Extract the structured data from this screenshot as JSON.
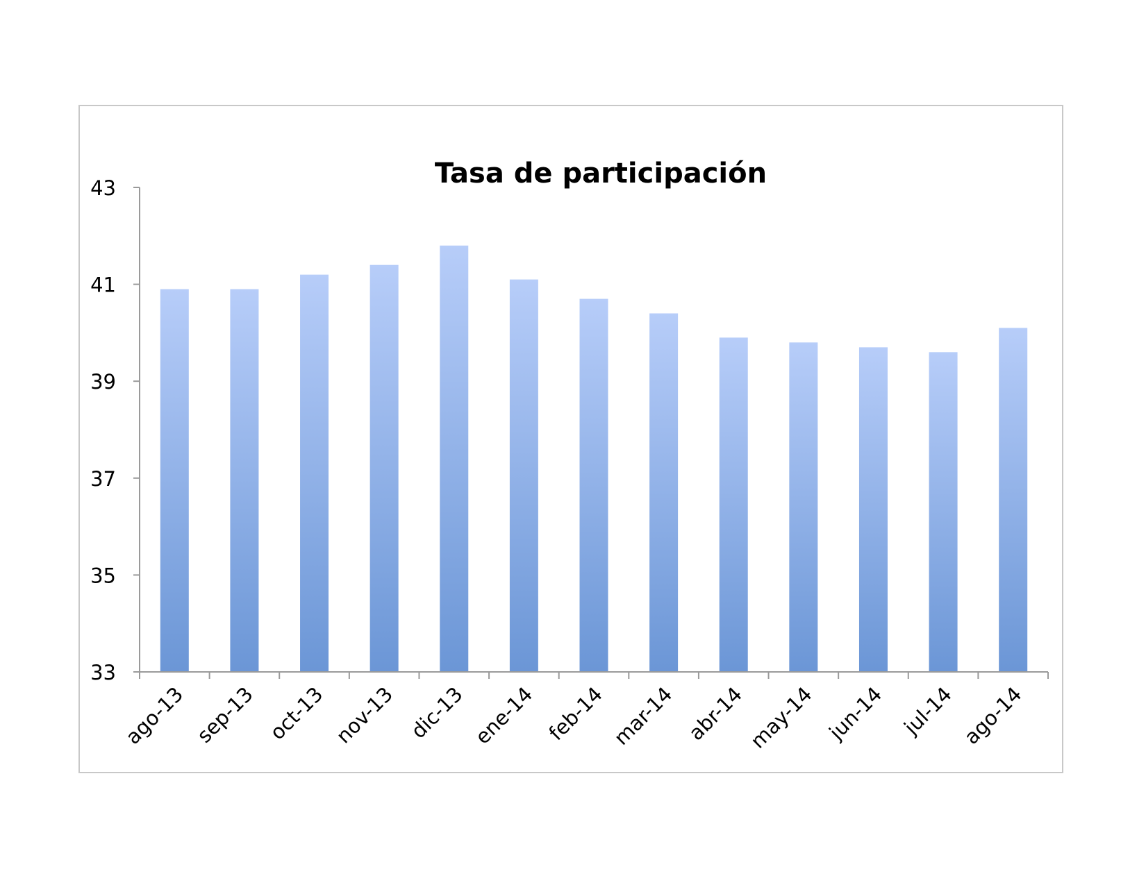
{
  "chart_data": {
    "type": "bar",
    "title": "Tasa de participación",
    "xlabel": "",
    "ylabel": "",
    "categories": [
      "ago-13",
      "sep-13",
      "oct-13",
      "nov-13",
      "dic-13",
      "ene-14",
      "feb-14",
      "mar-14",
      "abr-14",
      "may-14",
      "jun-14",
      "jul-14",
      "ago-14"
    ],
    "values": [
      40.9,
      40.9,
      41.2,
      41.4,
      41.8,
      41.1,
      40.7,
      40.4,
      39.9,
      39.8,
      39.7,
      39.6,
      40.1
    ],
    "ylim": [
      33,
      43
    ],
    "yticks": [
      "33",
      "35",
      "37",
      "39",
      "41",
      "43"
    ],
    "grid": false,
    "legend": "none",
    "colors": {
      "bar_top": "#b7cdf9",
      "bar_bottom": "#6b96d6",
      "axis": "#9a9a9a"
    }
  }
}
